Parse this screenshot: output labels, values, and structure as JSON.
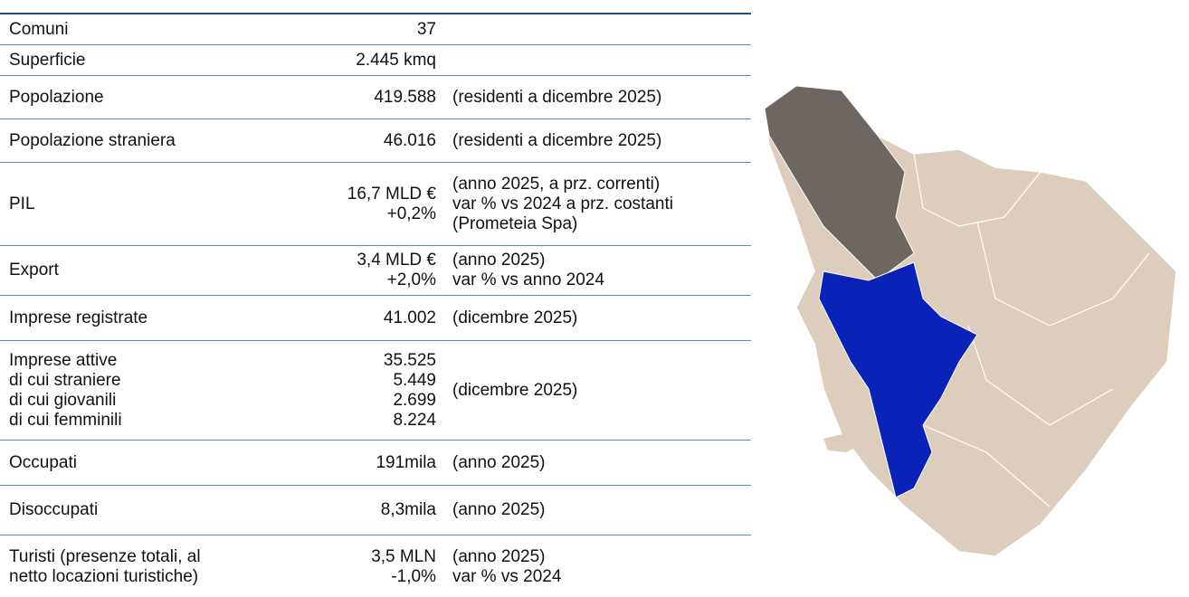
{
  "table": {
    "rows": [
      {
        "label": [
          "Comuni"
        ],
        "value": [
          "37"
        ]
      },
      {
        "label": [
          "Superficie"
        ],
        "value": [
          "2.445 kmq"
        ]
      },
      {
        "label": [
          "Popolazione"
        ],
        "value": [
          "419.588"
        ],
        "note": [
          "(residenti a dicembre 2025)"
        ]
      },
      {
        "label": [
          "Popolazione straniera"
        ],
        "value": [
          "46.016"
        ],
        "note": [
          "(residenti a dicembre 2025)"
        ]
      },
      {
        "label": [
          "PIL"
        ],
        "value": [
          "16,7 MLD €",
          "+0,2%"
        ],
        "note": [
          "(anno 2025, a prz. correnti)",
          "var % vs 2024 a prz. costanti",
          "(Prometeia Spa)"
        ]
      },
      {
        "label": [
          "Export"
        ],
        "value": [
          "3,4 MLD €",
          "+2,0%"
        ],
        "note": [
          "(anno 2025)",
          "var % vs anno 2024"
        ]
      },
      {
        "label": [
          "Imprese registrate"
        ],
        "value": [
          "41.002"
        ],
        "note": [
          "(dicembre 2025)"
        ]
      },
      {
        "label": [
          "Imprese attive",
          "di cui straniere",
          "di cui giovanili",
          "di cui femminili"
        ],
        "value": [
          "35.525",
          "5.449",
          "2.699",
          "8.224"
        ],
        "note": [
          "(dicembre 2025)"
        ]
      },
      {
        "label": [
          "Occupati"
        ],
        "value": [
          "191mila"
        ],
        "note": [
          "(anno 2025)"
        ]
      },
      {
        "label": [
          "Disoccupati"
        ],
        "value": [
          "8,3mila"
        ],
        "note": [
          "(anno 2025)"
        ]
      },
      {
        "label": [
          "Turisti (presenze totali, al",
          "netto locazioni turistiche)"
        ],
        "value": [
          "3,5 MLN",
          "-1,0%"
        ],
        "note": [
          "(anno 2025)",
          "var % vs 2024"
        ]
      }
    ]
  }
}
